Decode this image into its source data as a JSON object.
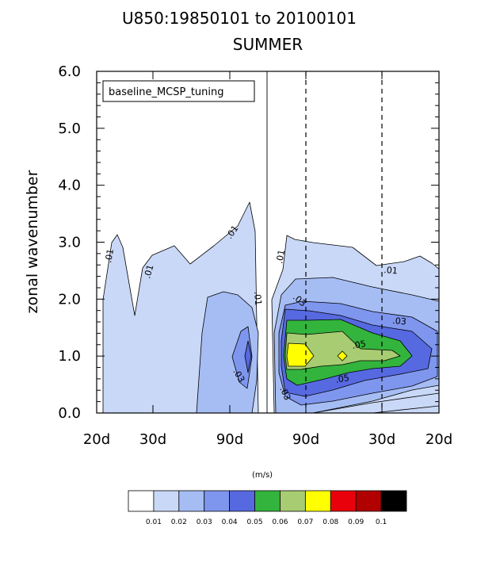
{
  "title_line1": "U850:19850101 to 20100101",
  "title_line2": "SUMMER",
  "legend_label": "baseline_MCSP_tuning",
  "colorbar_unit": "(m/s)",
  "chart_data": {
    "type": "heatmap",
    "ylabel": "zonal wavenumber",
    "y_ticks": [
      "0.0",
      "1.0",
      "2.0",
      "3.0",
      "4.0",
      "5.0",
      "6.0"
    ],
    "ylim": [
      0,
      6
    ],
    "x_ticks": [
      "20d",
      "30d",
      "90d",
      "90d",
      "30d",
      "20d"
    ],
    "contour_labels": [
      ".01",
      ".01",
      ".01",
      ".01",
      ".01",
      ".03",
      ".03",
      ".05",
      ".05",
      ".03",
      ".01",
      ".03"
    ],
    "colorbar": {
      "labels": [
        "0.01",
        "0.02",
        "0.03",
        "0.04",
        "0.05",
        "0.06",
        "0.07",
        "0.08",
        "0.09",
        "0.1"
      ],
      "colors": [
        "#ffffff",
        "#c9d8f7",
        "#a6bdf4",
        "#7e96ee",
        "#5669e0",
        "#33b43d",
        "#a8cc72",
        "#ffff00",
        "#e8000b",
        "#b00000",
        "#000000"
      ]
    }
  }
}
